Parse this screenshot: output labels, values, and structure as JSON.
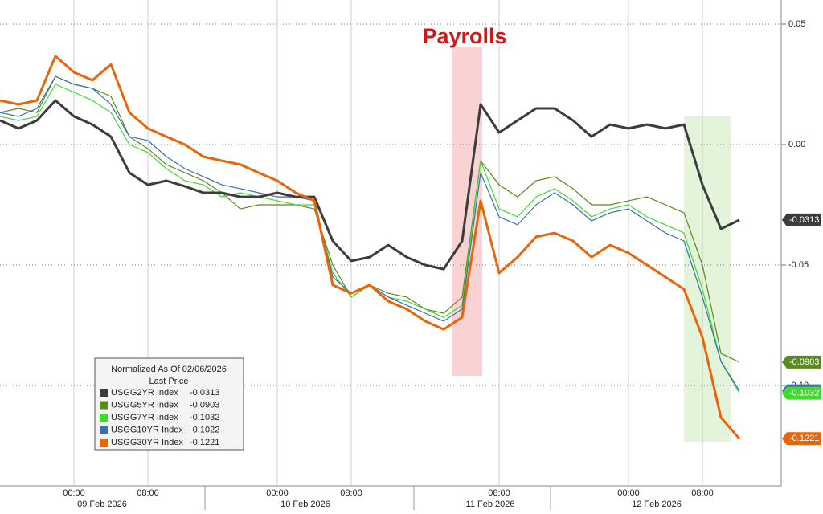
{
  "chart_data": {
    "type": "line",
    "annotation": "Payrolls",
    "legend_title": "Normalized As Of 02/06/2026",
    "legend_subtitle": "Last Price",
    "categories": [
      null,
      null,
      null,
      null,
      "00:00",
      null,
      null,
      null,
      "08:00",
      null,
      null,
      null,
      null,
      null,
      null,
      "00:00",
      null,
      null,
      null,
      "08:00",
      null,
      null,
      null,
      null,
      null,
      null,
      null,
      "08:00",
      null,
      null,
      null,
      null,
      null,
      null,
      "00:00",
      null,
      null,
      null,
      "08:00",
      null,
      null
    ],
    "x_dates": [
      null,
      null,
      null,
      null,
      null,
      "09 Feb 2026",
      null,
      null,
      null,
      null,
      null,
      null,
      null,
      null,
      null,
      null,
      "10 Feb 2026",
      null,
      null,
      null,
      null,
      null,
      null,
      null,
      null,
      null,
      "11 Feb 2026",
      null,
      null,
      null,
      null,
      null,
      null,
      null,
      null,
      "12 Feb 2026",
      null,
      null,
      null,
      null,
      null
    ],
    "ylim": [
      -0.14,
      0.06
    ],
    "yticks": [
      0.05,
      {
        "value": 0,
        "label": "0.00"
      },
      -0.05,
      {
        "value": -0.1,
        "label": "-0.10"
      }
    ],
    "grid": true,
    "series": [
      {
        "name": "USGG2YR Index",
        "color": "#3c3c3c",
        "line_width": 3,
        "values": [
          0.01,
          0.0067,
          0.01,
          0.0183,
          0.0117,
          0.0083,
          0.0033,
          -0.0117,
          -0.0167,
          -0.015,
          -0.0173,
          -0.02,
          -0.02,
          -0.0217,
          -0.0217,
          -0.02,
          -0.0217,
          -0.0217,
          -0.04,
          -0.0483,
          -0.0467,
          -0.0417,
          -0.0467,
          -0.05,
          -0.0517,
          -0.04,
          0.0167,
          0.005,
          0.01,
          0.015,
          0.015,
          0.01,
          0.0033,
          0.0083,
          0.0067,
          0.0083,
          0.0067,
          0.0083,
          -0.0167,
          -0.035,
          -0.0313
        ]
      },
      {
        "name": "USGG5YR Index",
        "color": "#5a8a1a",
        "line_width": 1.2,
        "values": [
          0.0133,
          0.015,
          0.0133,
          0.0283,
          0.025,
          0.0233,
          0.02,
          0.0033,
          -0.0017,
          -0.0083,
          -0.0117,
          -0.015,
          -0.02,
          -0.0267,
          -0.025,
          -0.025,
          -0.025,
          -0.0267,
          -0.05,
          -0.0633,
          -0.0583,
          -0.0617,
          -0.0633,
          -0.0683,
          -0.07,
          -0.0633,
          -0.0067,
          -0.0167,
          -0.0217,
          -0.015,
          -0.0133,
          -0.0183,
          -0.025,
          -0.025,
          -0.0233,
          -0.0217,
          -0.025,
          -0.0283,
          -0.05,
          -0.0867,
          -0.0903
        ]
      },
      {
        "name": "USGG7YR Index",
        "color": "#3fdc2e",
        "line_width": 1.2,
        "values": [
          0.0117,
          0.01,
          0.0117,
          0.025,
          0.0217,
          0.0183,
          0.0133,
          0.0,
          -0.0033,
          -0.01,
          -0.015,
          -0.0167,
          -0.0217,
          -0.02,
          -0.0217,
          -0.0233,
          -0.025,
          -0.025,
          -0.0533,
          -0.0633,
          -0.0583,
          -0.0633,
          -0.065,
          -0.0683,
          -0.0717,
          -0.0667,
          -0.0067,
          -0.0267,
          -0.03,
          -0.0217,
          -0.0183,
          -0.0233,
          -0.03,
          -0.0267,
          -0.025,
          -0.03,
          -0.0333,
          -0.0367,
          -0.06,
          -0.09,
          -0.1032
        ]
      },
      {
        "name": "USGG10YR Index",
        "color": "#3a6fb0",
        "line_width": 1.2,
        "values": [
          0.0133,
          0.0117,
          0.015,
          0.0283,
          0.025,
          0.0233,
          0.0167,
          0.0033,
          0.0017,
          -0.005,
          -0.01,
          -0.0133,
          -0.0167,
          -0.0183,
          -0.02,
          -0.0217,
          -0.0217,
          -0.0233,
          -0.055,
          -0.0617,
          -0.0583,
          -0.0633,
          -0.0667,
          -0.07,
          -0.0733,
          -0.0683,
          -0.0117,
          -0.03,
          -0.0333,
          -0.025,
          -0.02,
          -0.025,
          -0.0317,
          -0.0283,
          -0.0267,
          -0.0317,
          -0.0367,
          -0.04,
          -0.0633,
          -0.09,
          -0.1022
        ]
      },
      {
        "name": "USGG30YR Index",
        "color": "#e8650a",
        "line_width": 3,
        "values": [
          0.0183,
          0.0167,
          0.0183,
          0.0367,
          0.03,
          0.0267,
          0.0333,
          0.0133,
          0.0067,
          0.0033,
          0.0,
          -0.005,
          -0.0067,
          -0.0083,
          -0.0117,
          -0.015,
          -0.02,
          -0.0233,
          -0.0583,
          -0.0617,
          -0.0583,
          -0.065,
          -0.0683,
          -0.0733,
          -0.0767,
          -0.0717,
          -0.0233,
          -0.0533,
          -0.0467,
          -0.0383,
          -0.0367,
          -0.04,
          -0.0467,
          -0.0417,
          -0.045,
          -0.05,
          -0.055,
          -0.06,
          -0.08,
          -0.1133,
          -0.1221
        ]
      }
    ]
  }
}
